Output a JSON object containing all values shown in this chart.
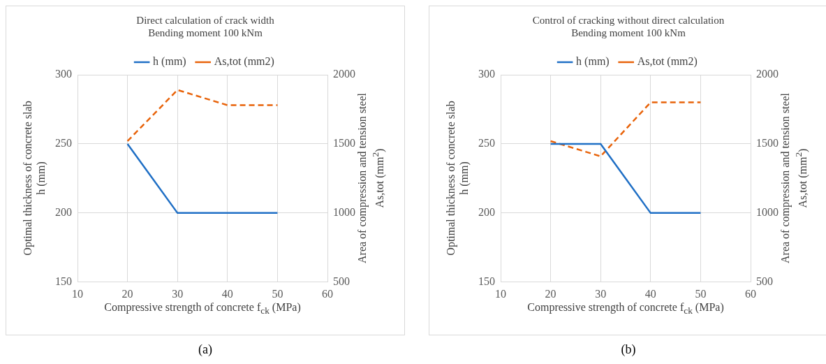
{
  "chart_data": [
    {
      "type": "line",
      "title": "Direct calculation of crack width\nBending moment 100 kNm",
      "xlabel": "Compressive strength of concrete f$_{ck}$ (MPa)",
      "ylabel": "Optimal thickness of concrete slab\nh (mm)",
      "y2label": "Area of compression and tension steel\nAs,tot (mm$^{2}$)",
      "x": [
        20,
        30,
        40,
        50
      ],
      "series": [
        {
          "name": "h (mm)",
          "color": "#1f6fc5",
          "values": [
            250,
            200,
            200,
            200
          ],
          "line_style": "solid"
        },
        {
          "name": "As,tot (mm2)",
          "color": "#e8630a",
          "values": [
            1520,
            1890,
            1780,
            1780
          ],
          "axis": "y2",
          "line_style": "dashed"
        }
      ],
      "xlim": [
        10,
        60
      ],
      "xticks": [
        10,
        20,
        30,
        40,
        50,
        60
      ],
      "ylim": [
        150,
        300
      ],
      "yticks": [
        150,
        200,
        250,
        300
      ],
      "y2lim": [
        500,
        2000
      ],
      "y2ticks": [
        500,
        1000,
        1500,
        2000
      ],
      "grid": true,
      "legend": "top",
      "marker": "none",
      "annotations": [
        "(a)"
      ]
    },
    {
      "type": "line",
      "title": "Control of cracking without direct calculation\nBending moment 100 kNm",
      "xlabel": "Compressive strength of concrete f$_{ck}$ (MPa)",
      "ylabel": "Optimal thickness of concrete slab\nh (mm)",
      "y2label": "Area of compression and tension steel\nAs,tot (mm$^{2}$)",
      "x": [
        20,
        30,
        40,
        50
      ],
      "series": [
        {
          "name": "h (mm)",
          "color": "#1f6fc5",
          "values": [
            250,
            250,
            200,
            200
          ],
          "line_style": "solid"
        },
        {
          "name": "As,tot (mm2)",
          "color": "#e8630a",
          "values": [
            1520,
            1410,
            1800,
            1800
          ],
          "axis": "y2",
          "line_style": "dashed"
        }
      ],
      "xlim": [
        10,
        60
      ],
      "xticks": [
        10,
        20,
        30,
        40,
        50,
        60
      ],
      "ylim": [
        150,
        300
      ],
      "yticks": [
        150,
        200,
        250,
        300
      ],
      "y2lim": [
        500,
        2000
      ],
      "y2ticks": [
        500,
        1000,
        1500,
        2000
      ],
      "grid": true,
      "legend": "top",
      "marker": "none",
      "annotations": [
        "(b)"
      ]
    }
  ]
}
